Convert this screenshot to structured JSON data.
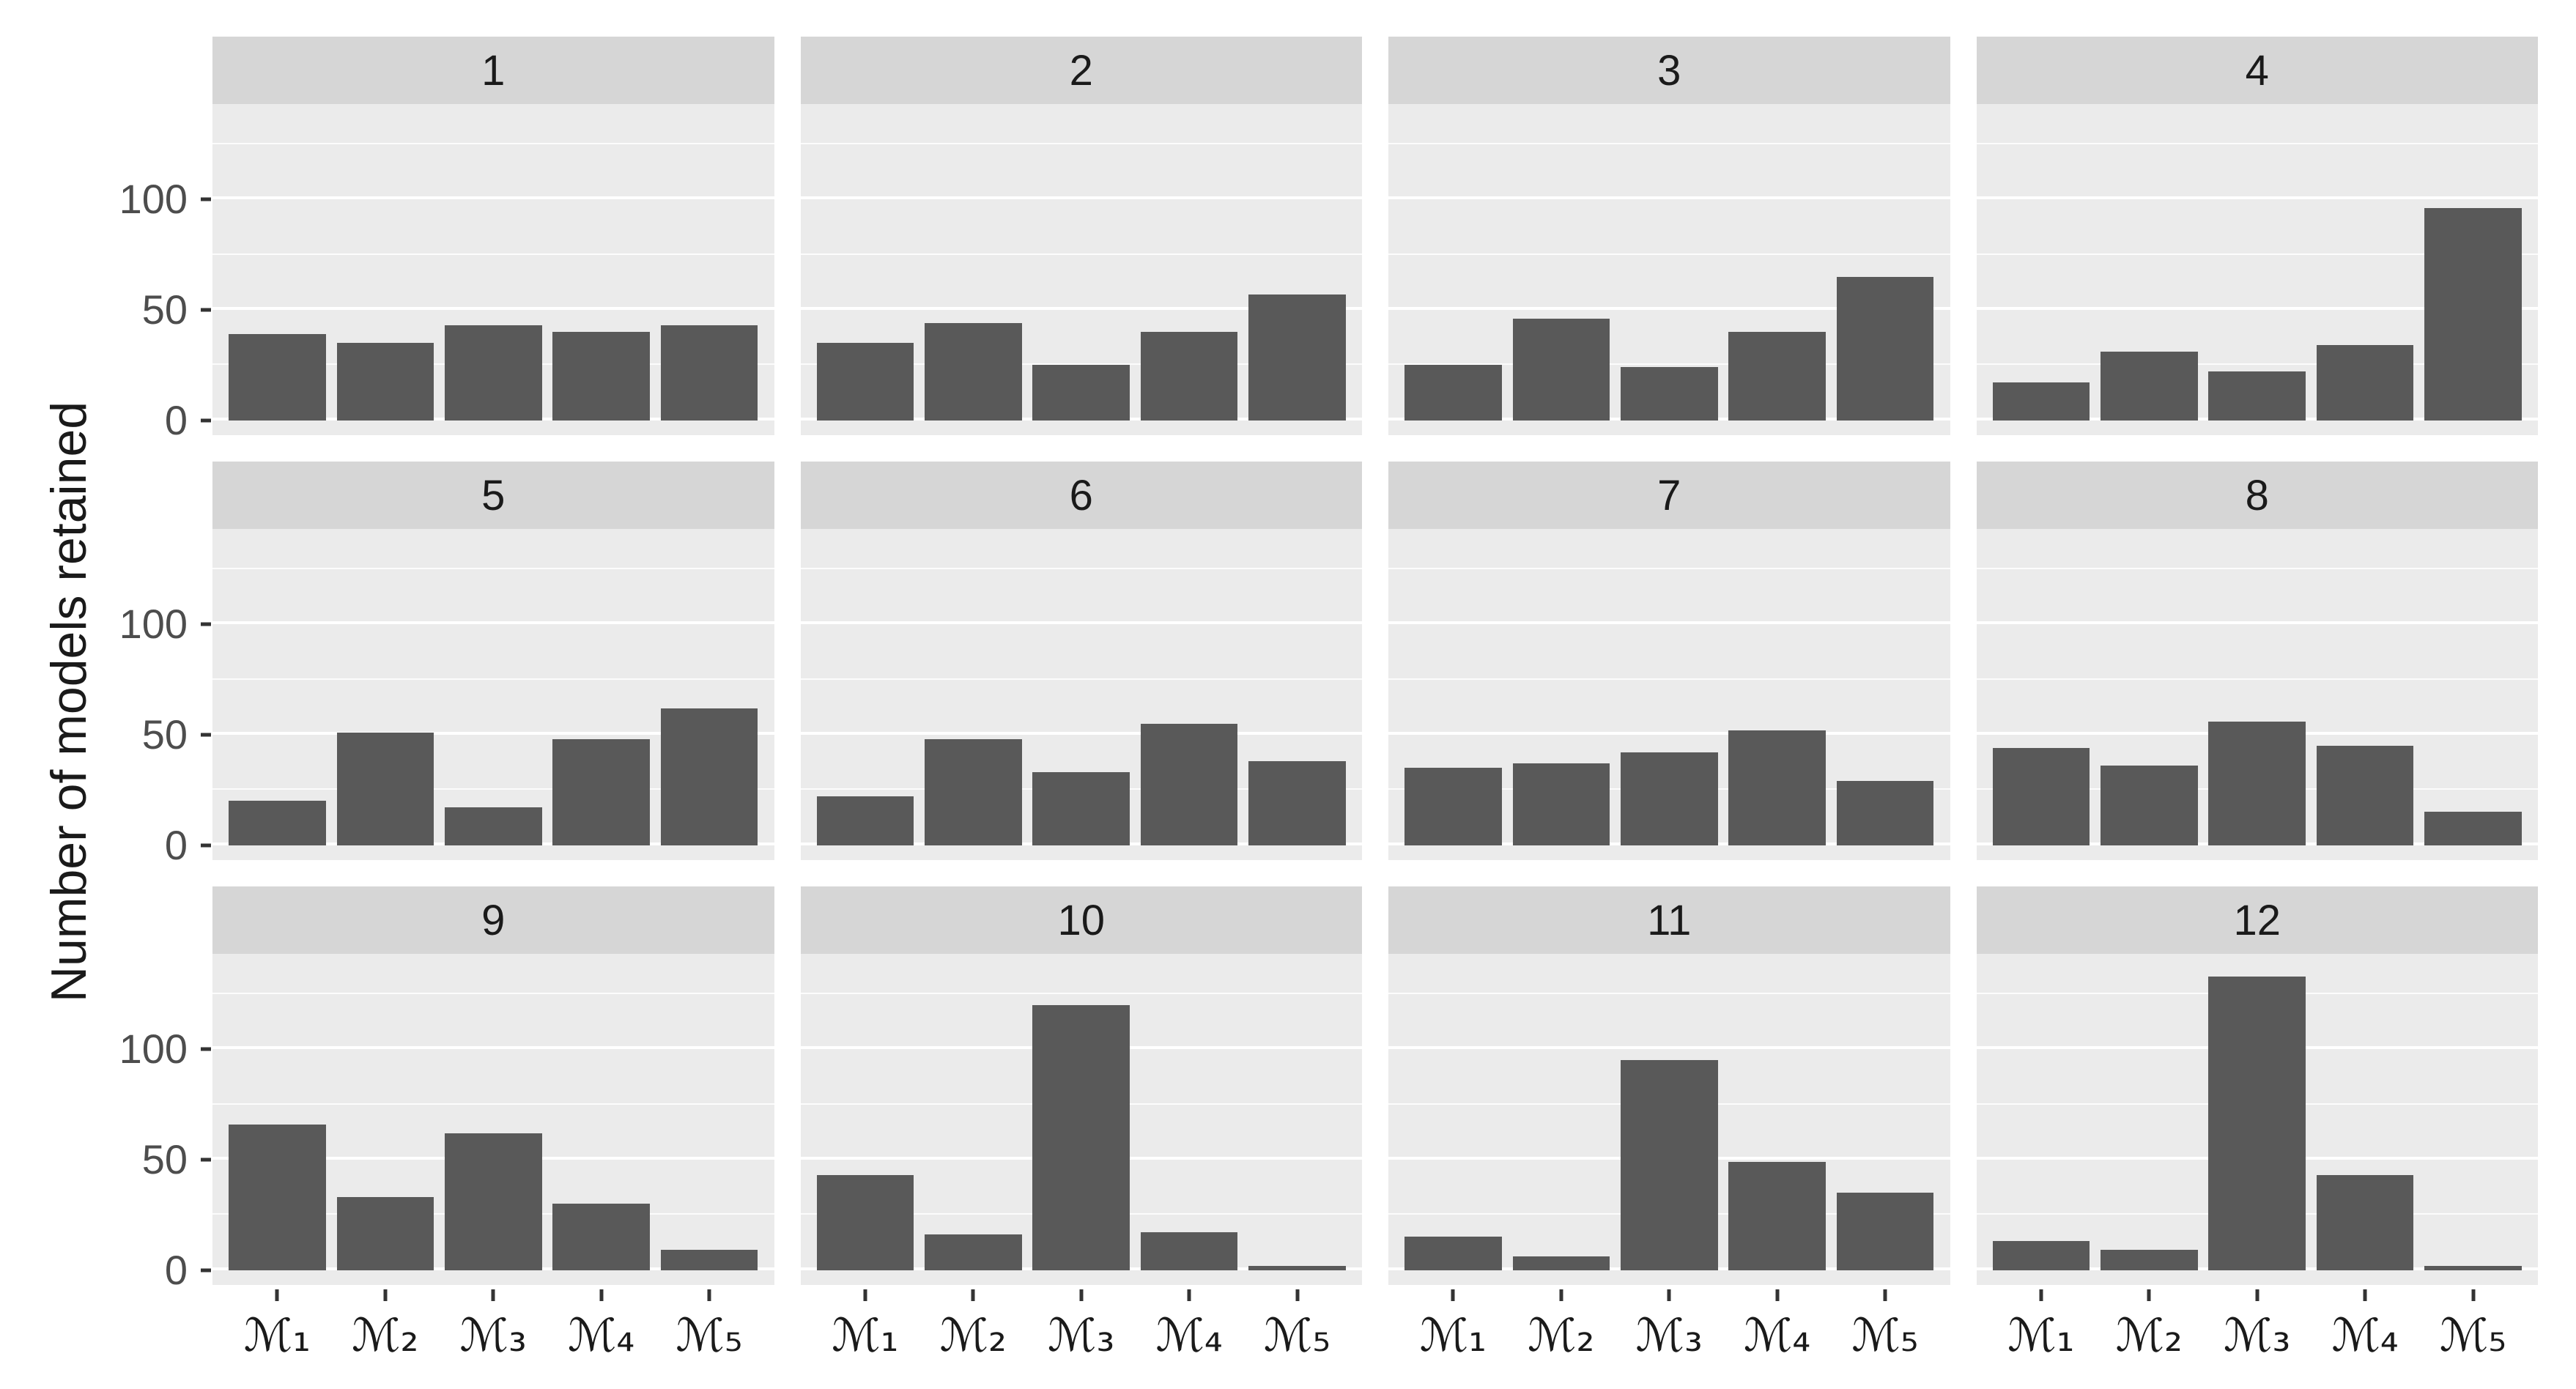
{
  "figure": {
    "ylabel": "Number of models retained",
    "colors": {
      "bar": "#595959",
      "panel_background": "#ebebeb",
      "strip_background": "#d6d6d6",
      "gridline": "#ffffff",
      "tick_text": "#4d4d4d",
      "axis_title_text": "#1a1a1a",
      "tick_mark": "#333333"
    }
  },
  "chart_data": {
    "type": "bar",
    "title": "",
    "xlabel": "",
    "ylabel": "Number of models retained",
    "grid": true,
    "legend": false,
    "facet_layout": {
      "rows": 3,
      "cols": 4
    },
    "categories": [
      "ℳ₁",
      "ℳ₂",
      "ℳ₃",
      "ℳ₄",
      "ℳ₅"
    ],
    "y_ticks": [
      0,
      50,
      100
    ],
    "y_minor_ticks": [
      25,
      75,
      125
    ],
    "ylim": [
      0,
      143
    ],
    "facets": [
      {
        "label": "1",
        "values": [
          39,
          35,
          43,
          40,
          43
        ]
      },
      {
        "label": "2",
        "values": [
          35,
          44,
          25,
          40,
          57
        ]
      },
      {
        "label": "3",
        "values": [
          25,
          46,
          24,
          40,
          65
        ]
      },
      {
        "label": "4",
        "values": [
          17,
          31,
          22,
          34,
          96
        ]
      },
      {
        "label": "5",
        "values": [
          20,
          51,
          17,
          48,
          62
        ]
      },
      {
        "label": "6",
        "values": [
          22,
          48,
          33,
          55,
          38
        ]
      },
      {
        "label": "7",
        "values": [
          35,
          37,
          42,
          52,
          29
        ]
      },
      {
        "label": "8",
        "values": [
          44,
          36,
          56,
          45,
          15
        ]
      },
      {
        "label": "9",
        "values": [
          66,
          33,
          62,
          30,
          9
        ]
      },
      {
        "label": "10",
        "values": [
          43,
          16,
          120,
          17,
          2
        ]
      },
      {
        "label": "11",
        "values": [
          15,
          6,
          95,
          49,
          35
        ]
      },
      {
        "label": "12",
        "values": [
          13,
          9,
          133,
          43,
          2
        ]
      }
    ]
  }
}
